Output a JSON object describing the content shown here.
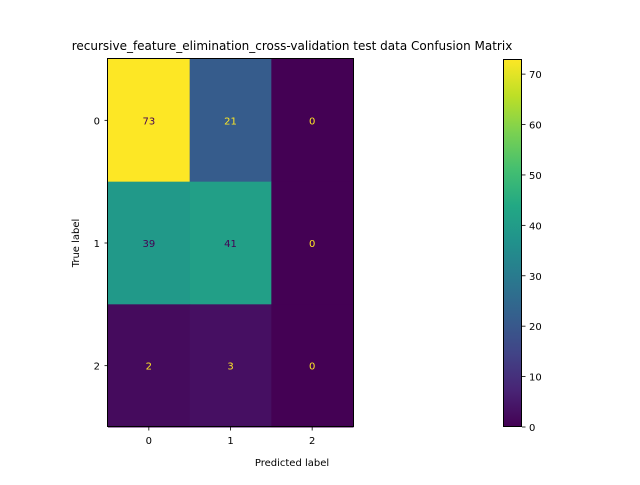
{
  "chart_data": {
    "type": "heatmap",
    "title": "recursive_feature_elimination_cross-validation test data Confusion Matrix",
    "xlabel": "Predicted label",
    "ylabel": "True label",
    "x_categories": [
      "0",
      "1",
      "2"
    ],
    "y_categories": [
      "0",
      "1",
      "2"
    ],
    "values": [
      [
        73,
        21,
        0
      ],
      [
        39,
        41,
        0
      ],
      [
        2,
        3,
        0
      ]
    ],
    "colormap": "viridis",
    "color_range": [
      0,
      73
    ],
    "colorbar_ticks": [
      0,
      10,
      20,
      30,
      40,
      50,
      60,
      70
    ],
    "colorbar_tick_labels": [
      "0",
      "10",
      "20",
      "30",
      "40",
      "50",
      "60",
      "70"
    ],
    "text_color_dark": "#440154",
    "text_color_light": "#fde725",
    "grid": false
  }
}
